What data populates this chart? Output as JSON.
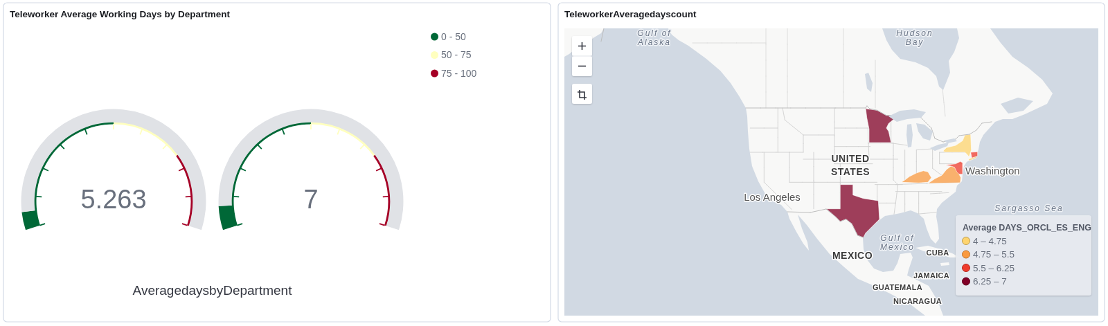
{
  "chart_data": [
    {
      "type": "donut",
      "title": "Teleworker Average Working Days by Department",
      "xlabel": "AveragedaysbyDepartment",
      "categories": [
        "0 - 50",
        "50 - 75",
        "75 - 100"
      ],
      "series": [
        {
          "values": [
            50,
            25,
            25
          ],
          "colors": [
            "#006837",
            "#ffffbf",
            "#a50026"
          ]
        },
        {
          "values": [
            5.263,
            94.737,
            null
          ],
          "colors": [
            "#006837",
            "#e0e2e6",
            null
          ]
        }
      ],
      "legend": "top right",
      "annotations": [
        "5.263"
      ]
    },
    {
      "type": "donut",
      "categories": [
        null,
        null,
        null
      ],
      "series": [
        {
          "values": [
            50,
            25,
            25
          ],
          "colors": [
            "#006837",
            "#ffffbf",
            "#a50026"
          ]
        },
        {
          "values": [
            7,
            93,
            null
          ],
          "colors": [
            "#006837",
            "#e0e2e6",
            null
          ]
        }
      ],
      "annotations": [
        "7"
      ]
    },
    {
      "type": "other",
      "title": "TeleworkerAveragedayscount",
      "legend_title": "Average DAYS_ORCL_ES_ENG",
      "categories": [
        "4 – 4.75",
        "4.75 – 5.5",
        "5.5 – 6.25",
        "6.25 – 7"
      ],
      "colors": [
        "#fed46e",
        "#fa9a3f",
        "#ef3b2c",
        "#800026"
      ],
      "annotations": [
        "Gulf of Alaska",
        "Hudson Bay",
        "UNITED STATES",
        "Los Angeles",
        "Washington",
        "MEXICO",
        "Gulf of Mexico",
        "CUBA",
        "Sargasso Sea",
        "JAMAICA",
        "GUATEMALA",
        "NICARAGUA"
      ]
    }
  ]
}
